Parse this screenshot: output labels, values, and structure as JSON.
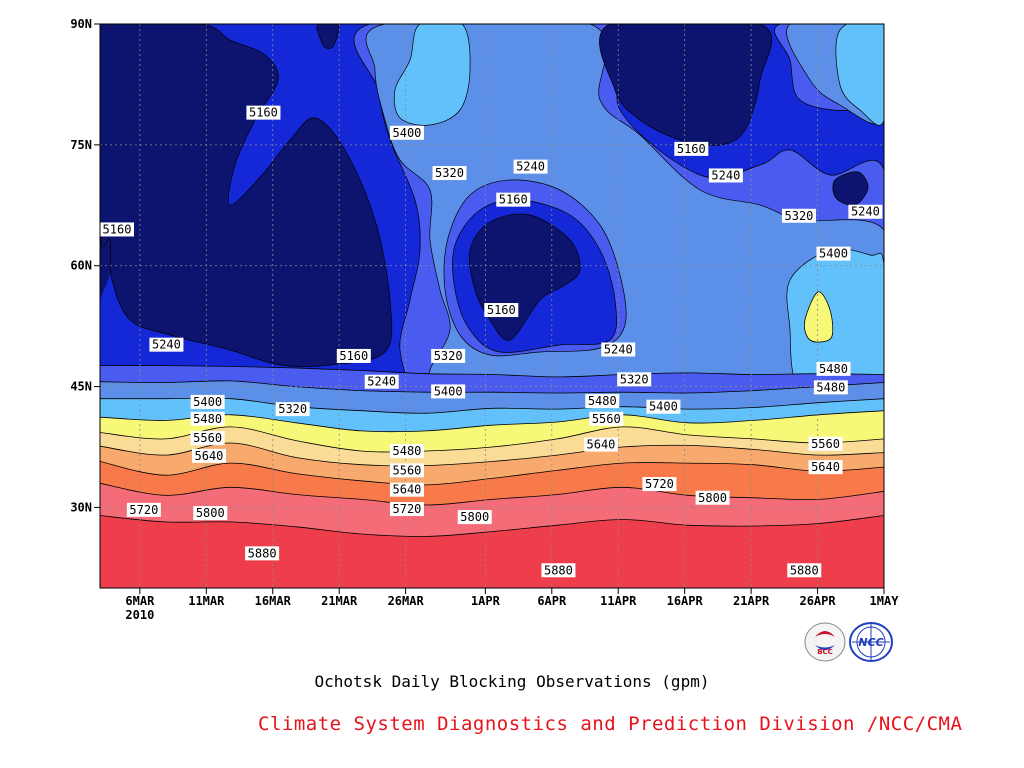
{
  "chart_data": {
    "type": "heatmap",
    "subtype": "time-latitude filled contour",
    "title": "Ochotsk Daily Blocking Observations (gpm)",
    "xlabel": "",
    "ylabel": "",
    "x_range": [
      "2010-03-03",
      "2010-05-01"
    ],
    "ylim": [
      20,
      90
    ],
    "x_ticks": [
      {
        "label": "6MAR",
        "sublabel": "2010",
        "day": 3
      },
      {
        "label": "11MAR",
        "day": 8
      },
      {
        "label": "16MAR",
        "day": 13
      },
      {
        "label": "21MAR",
        "day": 18
      },
      {
        "label": "26MAR",
        "day": 23
      },
      {
        "label": "1APR",
        "day": 29
      },
      {
        "label": "6APR",
        "day": 34
      },
      {
        "label": "11APR",
        "day": 39
      },
      {
        "label": "16APR",
        "day": 44
      },
      {
        "label": "21APR",
        "day": 49
      },
      {
        "label": "26APR",
        "day": 54
      },
      {
        "label": "1MAY",
        "day": 59
      }
    ],
    "y_ticks": [
      {
        "label": "30N",
        "lat": 30
      },
      {
        "label": "45N",
        "lat": 45
      },
      {
        "label": "60N",
        "lat": 60
      },
      {
        "label": "75N",
        "lat": 75
      },
      {
        "label": "90N",
        "lat": 90
      }
    ],
    "grid": true,
    "contour_levels": [
      5160,
      5240,
      5320,
      5400,
      5480,
      5560,
      5640,
      5720,
      5800,
      5880
    ],
    "fill_colors": [
      "#0c1470",
      "#1428d8",
      "#4a5cf0",
      "#5c90e8",
      "#62c0fa",
      "#f8f878",
      "#fadc96",
      "#f8aa6e",
      "#f87a4a",
      "#f46c78",
      "#ee3e4c"
    ],
    "zonal_bands": [
      {
        "level": 5240,
        "lat": [
          47.6,
          47.6,
          47.5,
          47.3,
          47.0,
          46.6,
          46.5,
          46.2,
          46.5,
          46.7,
          46.5,
          46.6,
          46.5
        ]
      },
      {
        "level": 5320,
        "lat": [
          45.6,
          45.5,
          45.7,
          45.0,
          44.5,
          44.3,
          44.3,
          44.2,
          44.3,
          44.2,
          44.5,
          45.0,
          45.5
        ]
      },
      {
        "level": 5400,
        "lat": [
          43.5,
          43.5,
          43.5,
          42.5,
          42.0,
          41.7,
          42.3,
          42.2,
          42.5,
          42.2,
          42.4,
          43.0,
          43.5
        ]
      },
      {
        "level": 5480,
        "lat": [
          41.2,
          40.8,
          41.5,
          40.5,
          39.5,
          39.5,
          40.2,
          40.6,
          41.5,
          40.5,
          40.8,
          41.5,
          42.0
        ]
      },
      {
        "level": 5560,
        "lat": [
          39.3,
          38.5,
          40.0,
          38.3,
          37.0,
          37.0,
          37.5,
          38.5,
          40.0,
          39.0,
          38.5,
          38.0,
          38.5
        ]
      },
      {
        "level": 5640,
        "lat": [
          37.6,
          36.5,
          38.0,
          36.2,
          35.3,
          35.2,
          35.7,
          36.5,
          37.5,
          37.7,
          37.2,
          36.5,
          36.8
        ]
      },
      {
        "level": 5720,
        "lat": [
          35.7,
          34.0,
          35.5,
          34.2,
          33.3,
          32.8,
          33.6,
          34.6,
          35.5,
          35.5,
          35.3,
          34.5,
          35.0
        ]
      },
      {
        "level": 5800,
        "lat": [
          33.0,
          31.5,
          32.5,
          31.6,
          31.0,
          30.3,
          31.0,
          31.6,
          32.5,
          31.5,
          31.2,
          31.0,
          32.0
        ]
      },
      {
        "level": 5880,
        "lat": [
          29.0,
          28.2,
          28.2,
          27.6,
          26.7,
          26.4,
          27.0,
          27.8,
          28.5,
          27.8,
          27.7,
          28.0,
          29.0
        ]
      }
    ],
    "contour_labels": [
      {
        "text": "5160",
        "day": 0.1,
        "lat": 64.5
      },
      {
        "text": "5160",
        "day": 12.3,
        "lat": 79
      },
      {
        "text": "5400",
        "day": 23.1,
        "lat": 76.5
      },
      {
        "text": "5320",
        "day": 26.3,
        "lat": 71.5
      },
      {
        "text": "5240",
        "day": 32.4,
        "lat": 72.3
      },
      {
        "text": "5160",
        "day": 31.1,
        "lat": 68.2
      },
      {
        "text": "5160",
        "day": 44.5,
        "lat": 74.5
      },
      {
        "text": "5240",
        "day": 47.1,
        "lat": 71.2
      },
      {
        "text": "5240",
        "day": 57.6,
        "lat": 66.7
      },
      {
        "text": "5320",
        "day": 52.6,
        "lat": 66.2
      },
      {
        "text": "5400",
        "day": 55.2,
        "lat": 61.5
      },
      {
        "text": "5160",
        "day": 30.2,
        "lat": 54.5
      },
      {
        "text": "5240",
        "day": 5.0,
        "lat": 50.2
      },
      {
        "text": "5160",
        "day": 19.1,
        "lat": 48.8
      },
      {
        "text": "5320",
        "day": 26.2,
        "lat": 48.8
      },
      {
        "text": "5240",
        "day": 39.0,
        "lat": 49.6
      },
      {
        "text": "5480",
        "day": 55.2,
        "lat": 47.2
      },
      {
        "text": "5240",
        "day": 21.2,
        "lat": 45.6
      },
      {
        "text": "5320",
        "day": 40.2,
        "lat": 45.9
      },
      {
        "text": "5400",
        "day": 26.2,
        "lat": 44.4
      },
      {
        "text": "5480",
        "day": 55.0,
        "lat": 44.9
      },
      {
        "text": "5480",
        "day": 37.8,
        "lat": 43.2
      },
      {
        "text": "5400",
        "day": 42.4,
        "lat": 42.5
      },
      {
        "text": "5400",
        "day": 8.1,
        "lat": 43.1
      },
      {
        "text": "5320",
        "day": 14.5,
        "lat": 42.2
      },
      {
        "text": "5560",
        "day": 38.1,
        "lat": 41.0
      },
      {
        "text": "5480",
        "day": 8.1,
        "lat": 41.0
      },
      {
        "text": "5560",
        "day": 8.1,
        "lat": 38.6
      },
      {
        "text": "5640",
        "day": 37.7,
        "lat": 37.8
      },
      {
        "text": "5560",
        "day": 54.6,
        "lat": 37.9
      },
      {
        "text": "5480",
        "day": 23.1,
        "lat": 37.0
      },
      {
        "text": "5640",
        "day": 8.2,
        "lat": 36.4
      },
      {
        "text": "5560",
        "day": 23.1,
        "lat": 34.6
      },
      {
        "text": "5640",
        "day": 54.6,
        "lat": 35.0
      },
      {
        "text": "5720",
        "day": 42.1,
        "lat": 32.9
      },
      {
        "text": "5640",
        "day": 23.1,
        "lat": 32.2
      },
      {
        "text": "5800",
        "day": 46.1,
        "lat": 31.2
      },
      {
        "text": "5720",
        "day": 23.1,
        "lat": 29.8
      },
      {
        "text": "5720",
        "day": 3.3,
        "lat": 29.7
      },
      {
        "text": "5800",
        "day": 8.3,
        "lat": 29.3
      },
      {
        "text": "5800",
        "day": 28.2,
        "lat": 28.8
      },
      {
        "text": "5880",
        "day": 12.2,
        "lat": 24.3
      },
      {
        "text": "5880",
        "day": 34.5,
        "lat": 22.2
      },
      {
        "text": "5880",
        "day": 53.0,
        "lat": 22.2
      }
    ]
  },
  "caption": "Ochotsk Daily Blocking Observations (gpm)",
  "credit": "Climate System Diagnostics and Prediction Division /NCC/CMA",
  "logos": [
    {
      "name": "BCC",
      "text": "BCC",
      "color": "#c8102e"
    },
    {
      "name": "NCC",
      "text": "NCC",
      "color": "#1f3fbf"
    }
  ]
}
